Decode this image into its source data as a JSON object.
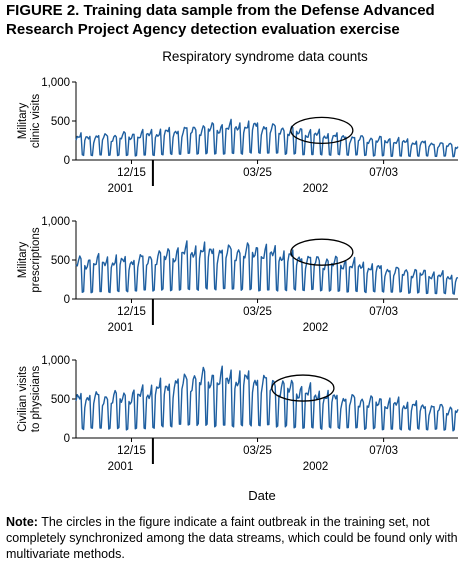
{
  "figure": {
    "title": "FIGURE 2. Training data sample from the Defense Advanced Research Project Agency detection evaluation exercise",
    "subtitle": "Respiratory syndrome data counts",
    "x_caption": "Date",
    "note_label": "Note:",
    "note_text": " The circles in the figure indicate a faint outbreak in the training set, not completely synchronized among the data streams, which could be found only with multivariate methods.",
    "line_color": "#1f5fa0"
  },
  "chart_data": [
    {
      "type": "line",
      "ylabel": "Military clinic visits",
      "ylim": [
        0,
        1000
      ],
      "yticks": [
        "0",
        "500",
        "1,000"
      ],
      "xticks": [
        "12/15",
        "03/25",
        "07/03"
      ],
      "year_labels": [
        "2001",
        "2002"
      ],
      "x": [
        "2001-11-01",
        "2001-12-15",
        "2002-02-01",
        "2002-03-25",
        "2002-05-15",
        "2002-07-03",
        "2002-08-31"
      ],
      "series": [
        {
          "baseline": [
            310,
            330,
            420,
            470,
            340,
            270,
            200
          ],
          "weekend": [
            60,
            60,
            80,
            90,
            70,
            55,
            45
          ]
        }
      ],
      "outbreak_circle": {
        "center": "2002-05-15",
        "level": 380
      }
    },
    {
      "type": "line",
      "ylabel": "Military prescriptions",
      "ylim": [
        0,
        1000
      ],
      "yticks": [
        "0",
        "500",
        "1,000"
      ],
      "xticks": [
        "12/15",
        "03/25",
        "07/03"
      ],
      "year_labels": [
        "2001",
        "2002"
      ],
      "x": [
        "2001-11-01",
        "2001-12-15",
        "2002-02-01",
        "2002-03-25",
        "2002-05-15",
        "2002-07-03",
        "2002-08-31"
      ],
      "series": [
        {
          "baseline": [
            500,
            520,
            660,
            650,
            520,
            410,
            290
          ],
          "weekend": [
            90,
            100,
            130,
            120,
            110,
            90,
            70
          ]
        }
      ],
      "outbreak_circle": {
        "center": "2002-05-15",
        "level": 600
      }
    },
    {
      "type": "line",
      "ylabel": "Civilian visits to physicians",
      "ylim": [
        0,
        1000
      ],
      "yticks": [
        "0",
        "500",
        "1,000"
      ],
      "xticks": [
        "12/15",
        "03/25",
        "07/03"
      ],
      "year_labels": [
        "2001",
        "2002"
      ],
      "x": [
        "2001-11-01",
        "2001-12-15",
        "2002-02-01",
        "2002-03-25",
        "2002-05-15",
        "2002-07-03",
        "2002-08-31"
      ],
      "series": [
        {
          "baseline": [
            560,
            560,
            820,
            800,
            570,
            480,
            390
          ],
          "weekend": [
            120,
            120,
            170,
            160,
            130,
            120,
            100
          ]
        }
      ],
      "outbreak_circle": {
        "center": "2002-04-30",
        "level": 640
      }
    }
  ]
}
